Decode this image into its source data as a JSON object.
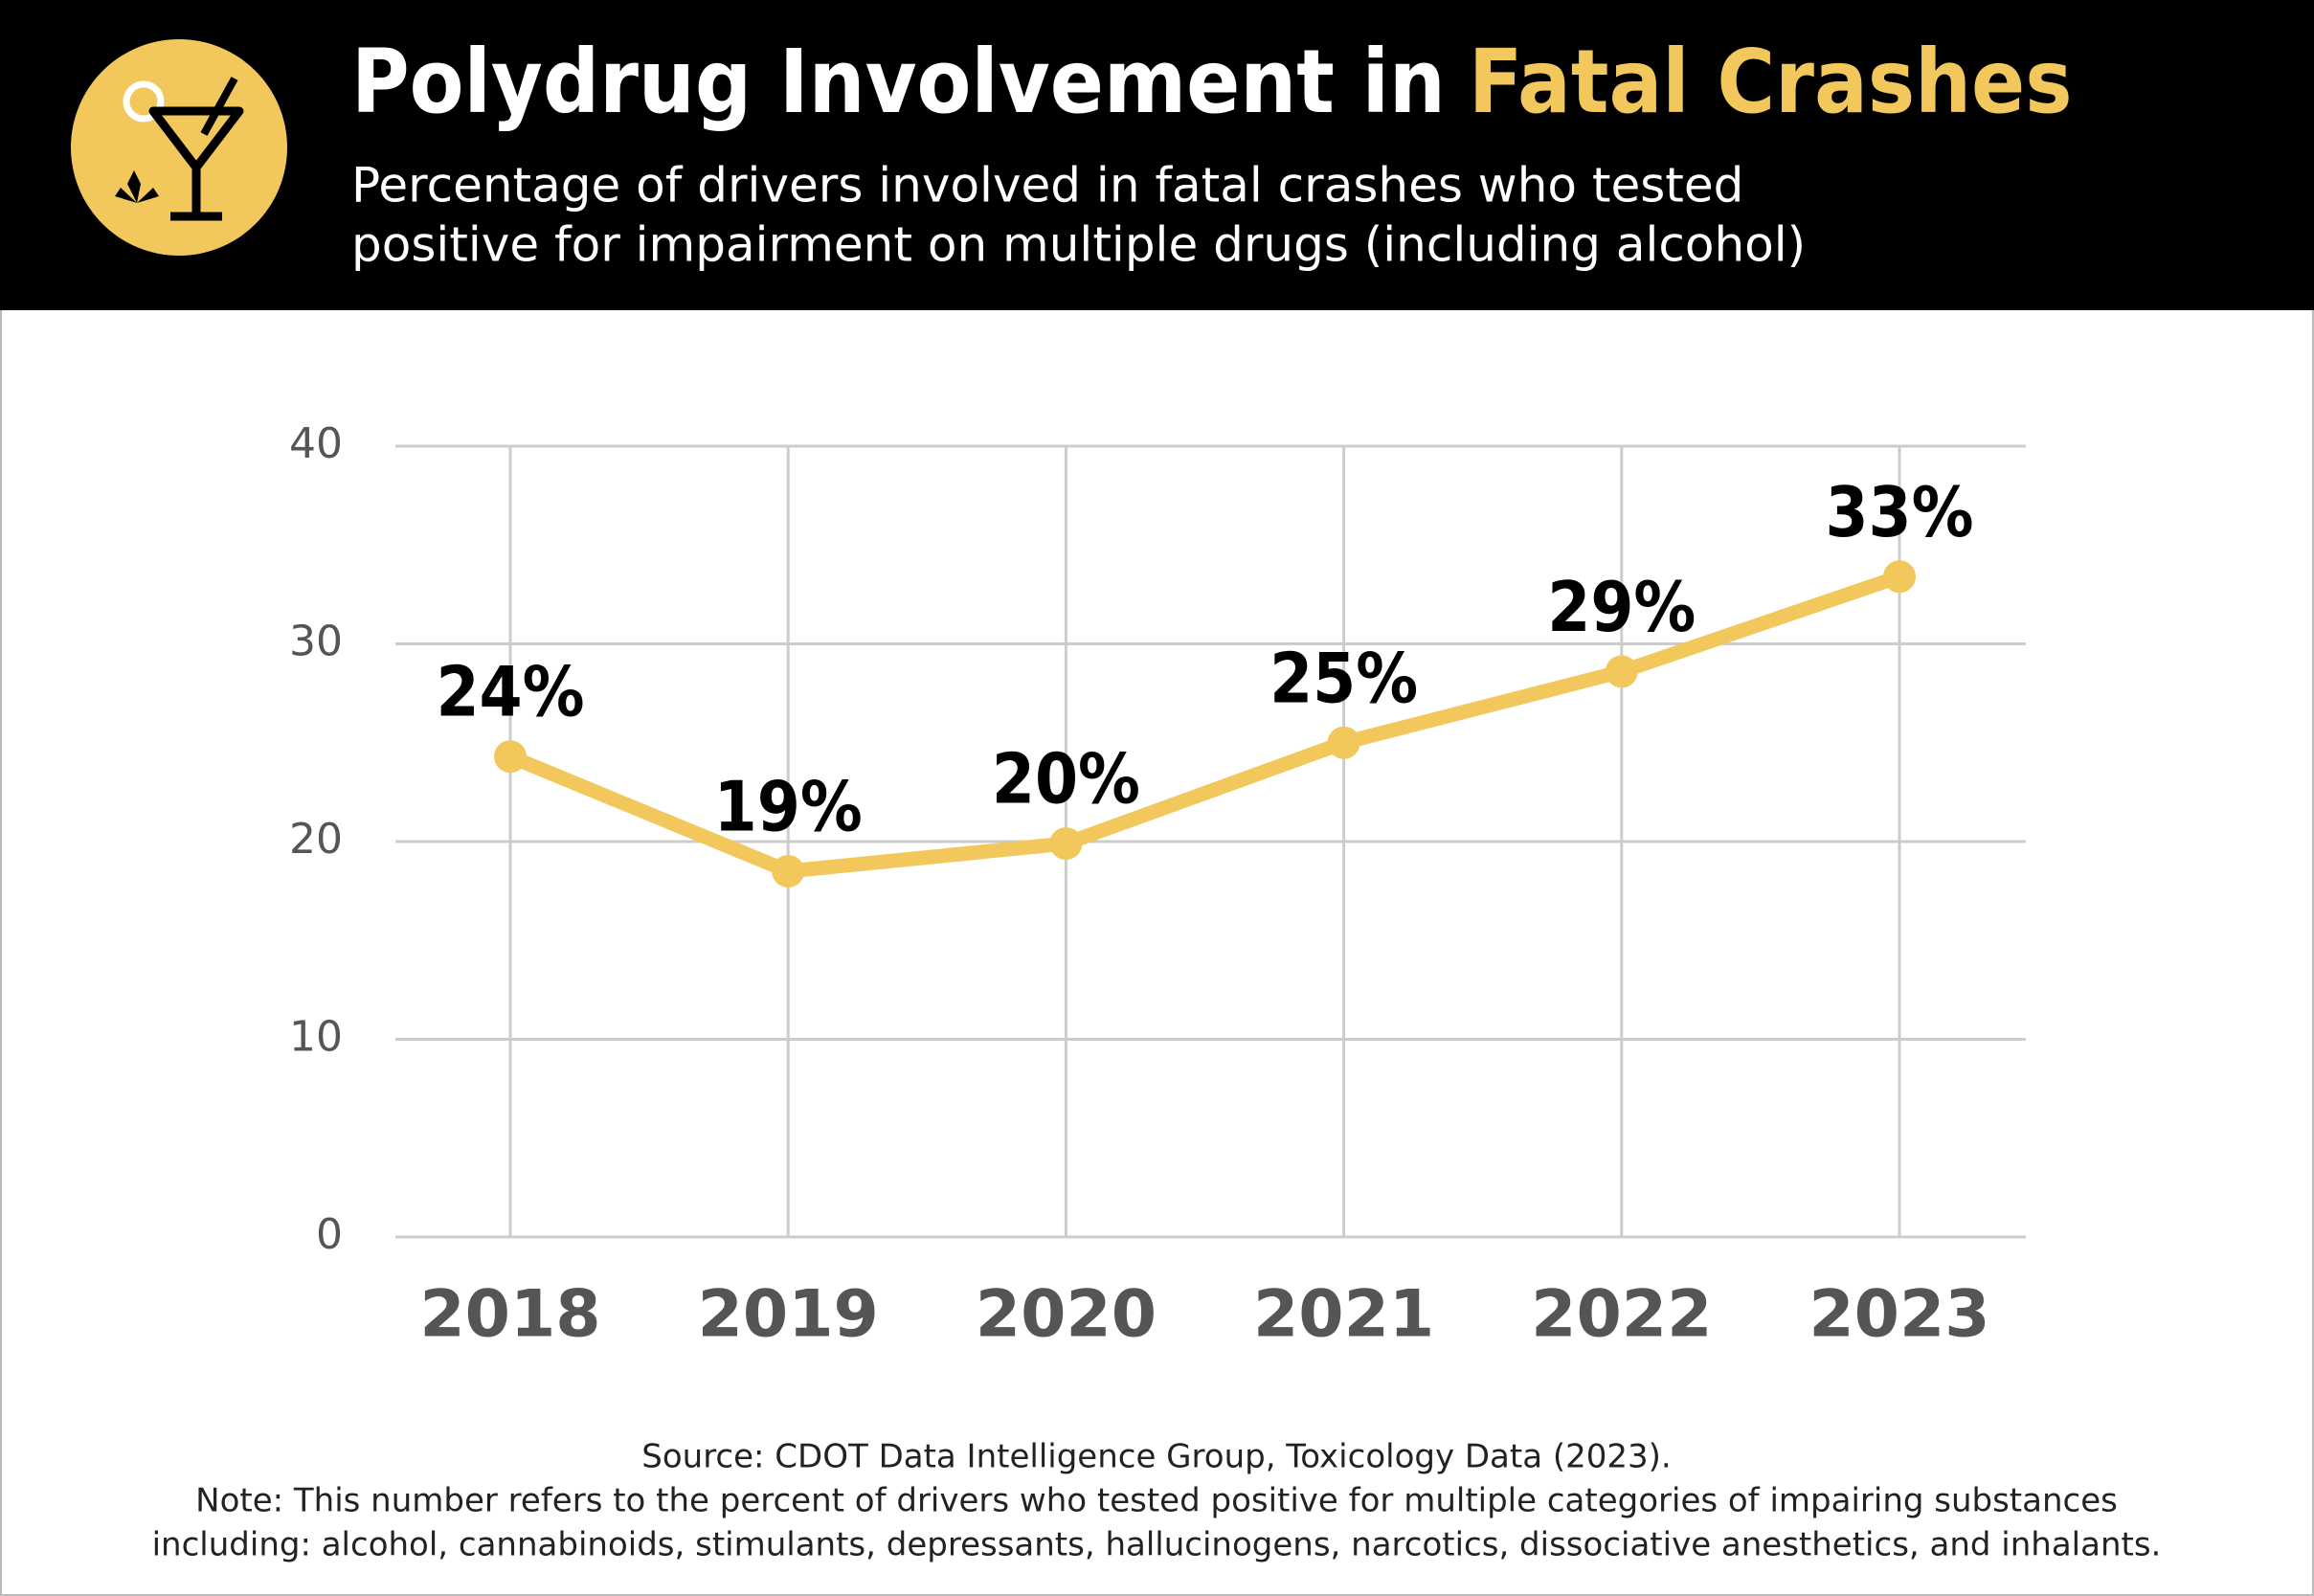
{
  "chart_data": {
    "type": "line",
    "title": "Polydrug Involvement in",
    "title_highlight": "Fatal Crashes",
    "subtitle": [
      "Percentage of drivers involved in fatal crashes who tested",
      "positive for impairment on multiple drugs (including alcohol)"
    ],
    "categories": [
      "2018",
      "2019",
      "2020",
      "2021",
      "2022",
      "2023"
    ],
    "series": [
      {
        "color": "#f2c75c",
        "values": [
          24.3,
          18.5,
          19.9,
          25.0,
          28.6,
          33.4
        ],
        "value_labels": [
          "24%",
          "19%",
          "20%",
          "25%",
          "29%",
          "33%"
        ]
      }
    ],
    "ylim": [
      0,
      40
    ],
    "yticks": [
      0,
      10,
      20,
      30,
      40
    ],
    "grid": true,
    "source": "Source: CDOT Data Intelligence Group, Toxicology Data (2023).",
    "note": [
      "Note: This number refers to the percent of drivers who tested positive for multiple categories of impairing substances",
      "including: alcohol, cannabinoids, stimulants, depressants, hallucinogens, narcotics, dissociative anesthetics, and inhalants."
    ]
  }
}
